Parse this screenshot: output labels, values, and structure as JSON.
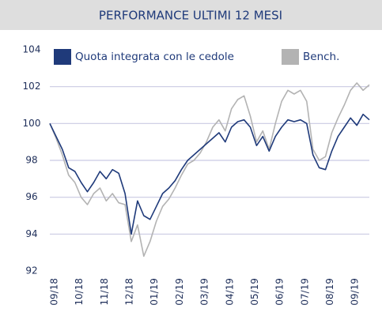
{
  "chart_data": {
    "type": "line",
    "title": "PERFORMANCE ULTIMI 12 MESI",
    "categories": [
      "09/18",
      null,
      null,
      null,
      "10/18",
      null,
      null,
      null,
      "11/18",
      null,
      null,
      null,
      "12/18",
      null,
      null,
      null,
      "01/19",
      null,
      null,
      null,
      "02/19",
      null,
      null,
      null,
      "03/19",
      null,
      null,
      null,
      "04/19",
      null,
      null,
      null,
      "05/19",
      null,
      null,
      null,
      "06/19",
      null,
      null,
      null,
      "07/19",
      null,
      null,
      null,
      "08/19",
      null,
      null,
      null,
      "09/19",
      null,
      null,
      null
    ],
    "series": [
      {
        "name": "Quota integrata con le cedole",
        "color": "#1f3a7a",
        "values": [
          100,
          99.3,
          98.6,
          97.6,
          97.4,
          96.8,
          96.3,
          96.8,
          97.4,
          97.0,
          97.5,
          97.3,
          96.2,
          94.0,
          95.8,
          95.0,
          94.8,
          95.5,
          96.2,
          96.5,
          96.9,
          97.5,
          98.0,
          98.3,
          98.6,
          98.9,
          99.2,
          99.5,
          99.0,
          99.8,
          100.1,
          100.2,
          99.8,
          98.8,
          99.3,
          98.5,
          99.3,
          99.8,
          100.2,
          100.1,
          100.2,
          100.0,
          98.3,
          97.6,
          97.5,
          98.5,
          99.3,
          99.8,
          100.3,
          99.9,
          100.5,
          100.2
        ]
      },
      {
        "name": "Bench.",
        "color": "#b3b3b3",
        "values": [
          100,
          99.2,
          98.3,
          97.2,
          96.8,
          96.0,
          95.6,
          96.2,
          96.5,
          95.8,
          96.2,
          95.7,
          95.6,
          93.6,
          94.5,
          92.8,
          93.6,
          94.7,
          95.5,
          95.9,
          96.5,
          97.2,
          97.8,
          98.0,
          98.4,
          99.0,
          99.8,
          100.2,
          99.6,
          100.8,
          101.3,
          101.5,
          100.4,
          99.0,
          99.6,
          98.6,
          100.0,
          101.2,
          101.8,
          101.6,
          101.8,
          101.2,
          98.6,
          98.0,
          98.2,
          99.5,
          100.3,
          101.0,
          101.8,
          102.2,
          101.8,
          102.1
        ]
      }
    ],
    "ylim": [
      92,
      104
    ],
    "yticks": [
      92,
      94,
      96,
      98,
      100,
      102,
      104
    ],
    "grid": true
  }
}
